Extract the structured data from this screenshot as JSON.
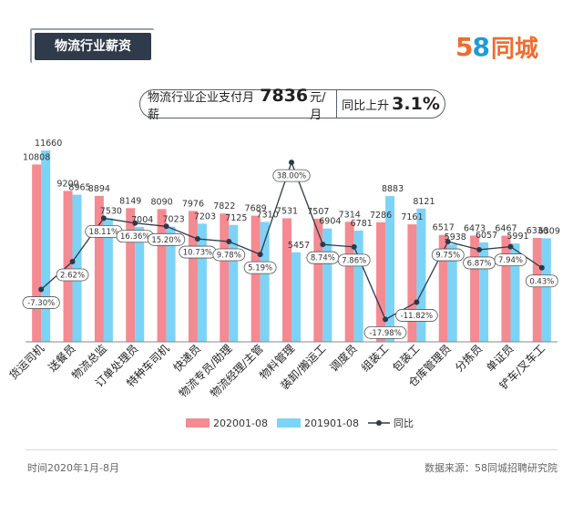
{
  "header": {
    "title": "物流行业薪资"
  },
  "logo": {
    "number_5": "5",
    "number_8": "8",
    "text": "同城",
    "color_orange": "#f26b2e",
    "color_blue": "#1e9bd7"
  },
  "summary": {
    "salary_prefix": "物流行业企业支付月薪",
    "salary_value": "7836",
    "salary_unit": "元/月",
    "yoy_prefix": "同比上升",
    "yoy_value": "3.1%"
  },
  "colors": {
    "series_2020": "#f48a92",
    "series_2019": "#7dd3f5",
    "yoy_line": "#2c3a4a"
  },
  "chart_data": {
    "type": "bar",
    "categories": [
      "货运司机",
      "送餐员",
      "物流总监",
      "订单处理员",
      "特种车司机",
      "快递员",
      "物流专员/助理",
      "物流经理/主管",
      "物料管理",
      "装卸/搬运工",
      "调度员",
      "组装工",
      "包装工",
      "仓库管理员",
      "分拣员",
      "单证员",
      "铲车/叉车工"
    ],
    "series": [
      {
        "name": "202001-08",
        "values": [
          10808,
          9200,
          8894,
          8149,
          8090,
          7976,
          7822,
          7689,
          7531,
          7507,
          7314,
          7286,
          7161,
          6517,
          6473,
          6467,
          6336
        ]
      },
      {
        "name": "201901-08",
        "values": [
          11660,
          8965,
          7530,
          7004,
          7023,
          7203,
          7125,
          7310,
          5457,
          6904,
          6781,
          8883,
          8121,
          5938,
          6057,
          5991,
          6309
        ]
      }
    ],
    "line": {
      "name": "同比",
      "values": [
        -7.3,
        2.62,
        18.11,
        16.36,
        15.2,
        10.73,
        9.78,
        5.19,
        38.0,
        8.74,
        7.86,
        -17.98,
        -11.82,
        9.75,
        6.87,
        7.94,
        0.43
      ],
      "labels": [
        "-7.30%",
        "2.62%",
        "18.11%",
        "16.36%",
        "15.20%",
        "10.73%",
        "9.78%",
        "5.19%",
        "38.00%",
        "8.74%",
        "7.86%",
        "-17.98%",
        "-11.82%",
        "9.75%",
        "6.87%",
        "7.94%",
        "0.43%"
      ]
    },
    "ylim_bar": [
      0,
      12500
    ],
    "ylim_line": [
      -25,
      40
    ],
    "legend": [
      "202001-08",
      "201901-08",
      "同比"
    ]
  },
  "footer": {
    "left": "时间2020年1月-8月",
    "right": "数据来源：58同城招聘研究院"
  }
}
